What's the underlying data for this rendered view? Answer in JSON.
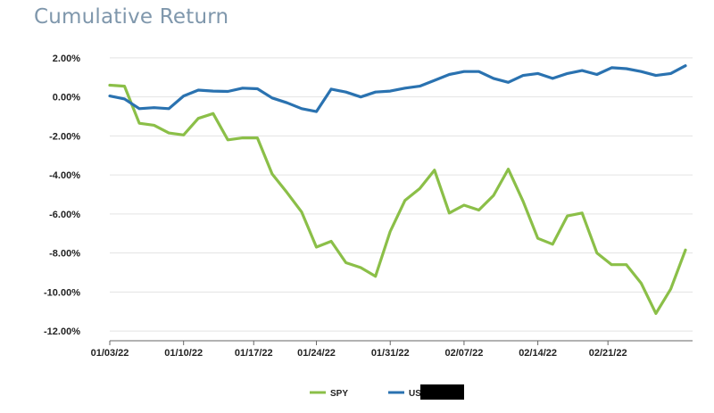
{
  "chart_data": {
    "type": "line",
    "title": "Cumulative Return",
    "x_tick_labels": [
      "01/03/22",
      "01/10/22",
      "01/17/22",
      "01/24/22",
      "01/31/22",
      "02/07/22",
      "02/14/22",
      "02/21/22"
    ],
    "y_tick_labels": [
      "2.00%",
      "0.00%",
      "-2.00%",
      "-4.00%",
      "-6.00%",
      "-8.00%",
      "-10.00%",
      "-12.00%"
    ],
    "ylim": [
      -12.5,
      2.5
    ],
    "y_ticks": [
      2,
      0,
      -2,
      -4,
      -6,
      -8,
      -10,
      -12
    ],
    "grid": "horizontal",
    "legend_position": "bottom",
    "series": [
      {
        "name": "SPY",
        "color": "#8bbf48",
        "points": [
          [
            "2022-01-03",
            0.6
          ],
          [
            "2022-01-04",
            0.55
          ],
          [
            "2022-01-05",
            -1.35
          ],
          [
            "2022-01-06",
            -1.45
          ],
          [
            "2022-01-07",
            -1.85
          ],
          [
            "2022-01-10",
            -1.95
          ],
          [
            "2022-01-11",
            -1.1
          ],
          [
            "2022-01-12",
            -0.85
          ],
          [
            "2022-01-13",
            -2.2
          ],
          [
            "2022-01-14",
            -2.1
          ],
          [
            "2022-01-18",
            -2.1
          ],
          [
            "2022-01-19",
            -3.95
          ],
          [
            "2022-01-20",
            -4.9
          ],
          [
            "2022-01-21",
            -5.9
          ],
          [
            "2022-01-24",
            -7.7
          ],
          [
            "2022-01-25",
            -7.4
          ],
          [
            "2022-01-26",
            -8.5
          ],
          [
            "2022-01-27",
            -8.75
          ],
          [
            "2022-01-28",
            -9.2
          ],
          [
            "2022-01-31",
            -6.9
          ],
          [
            "2022-02-01",
            -5.3
          ],
          [
            "2022-02-02",
            -4.7
          ],
          [
            "2022-02-03",
            -3.75
          ],
          [
            "2022-02-04",
            -5.95
          ],
          [
            "2022-02-07",
            -5.55
          ],
          [
            "2022-02-08",
            -5.8
          ],
          [
            "2022-02-09",
            -5.05
          ],
          [
            "2022-02-10",
            -3.7
          ],
          [
            "2022-02-11",
            -5.35
          ],
          [
            "2022-02-14",
            -7.25
          ],
          [
            "2022-02-15",
            -7.55
          ],
          [
            "2022-02-16",
            -6.1
          ],
          [
            "2022-02-17",
            -5.95
          ],
          [
            "2022-02-18",
            -8.0
          ],
          [
            "2022-02-22",
            -8.6
          ],
          [
            "2022-02-23",
            -8.6
          ],
          [
            "2022-02-24",
            -9.55
          ],
          [
            "2022-02-25",
            -11.1
          ],
          [
            "2022-02-28",
            -9.85
          ],
          [
            "2022-03-01",
            -7.85
          ]
        ]
      },
      {
        "name": "US",
        "color": "#2a72b0",
        "points": [
          [
            "2022-01-03",
            0.05
          ],
          [
            "2022-01-04",
            -0.1
          ],
          [
            "2022-01-05",
            -0.6
          ],
          [
            "2022-01-06",
            -0.55
          ],
          [
            "2022-01-07",
            -0.6
          ],
          [
            "2022-01-10",
            0.05
          ],
          [
            "2022-01-11",
            0.35
          ],
          [
            "2022-01-12",
            0.3
          ],
          [
            "2022-01-13",
            0.28
          ],
          [
            "2022-01-14",
            0.45
          ],
          [
            "2022-01-18",
            0.42
          ],
          [
            "2022-01-19",
            -0.05
          ],
          [
            "2022-01-20",
            -0.3
          ],
          [
            "2022-01-21",
            -0.6
          ],
          [
            "2022-01-24",
            -0.75
          ],
          [
            "2022-01-25",
            0.4
          ],
          [
            "2022-01-26",
            0.25
          ],
          [
            "2022-01-27",
            0.0
          ],
          [
            "2022-01-28",
            0.25
          ],
          [
            "2022-01-31",
            0.3
          ],
          [
            "2022-02-01",
            0.45
          ],
          [
            "2022-02-02",
            0.55
          ],
          [
            "2022-02-03",
            0.85
          ],
          [
            "2022-02-04",
            1.15
          ],
          [
            "2022-02-07",
            1.3
          ],
          [
            "2022-02-08",
            1.3
          ],
          [
            "2022-02-09",
            0.95
          ],
          [
            "2022-02-10",
            0.75
          ],
          [
            "2022-02-11",
            1.1
          ],
          [
            "2022-02-14",
            1.2
          ],
          [
            "2022-02-15",
            0.95
          ],
          [
            "2022-02-16",
            1.2
          ],
          [
            "2022-02-17",
            1.35
          ],
          [
            "2022-02-18",
            1.15
          ],
          [
            "2022-02-22",
            1.5
          ],
          [
            "2022-02-23",
            1.45
          ],
          [
            "2022-02-24",
            1.3
          ],
          [
            "2022-02-25",
            1.1
          ],
          [
            "2022-02-28",
            1.2
          ],
          [
            "2022-03-01",
            1.6
          ]
        ]
      }
    ]
  }
}
